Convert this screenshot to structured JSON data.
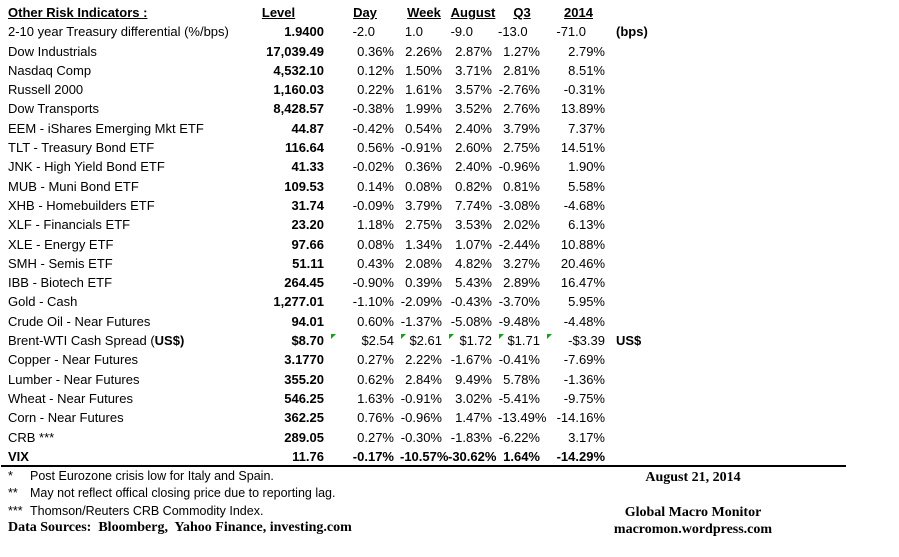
{
  "title": "Other Risk Indicators :",
  "columns": [
    "Level",
    "Day",
    "Week",
    "August",
    "Q3",
    "2014"
  ],
  "table": {
    "rows": [
      {
        "label": "2-10 year Treasury differential (%/bps)",
        "level": "1.9400",
        "day": "-2.0",
        "week": "1.0",
        "august": "-9.0",
        "q3": "-13.0",
        "y2014": "-71.0",
        "note": "(bps)",
        "inset": true
      },
      {
        "label": "Dow Industrials",
        "level": "17,039.49",
        "day": "0.36%",
        "week": "2.26%",
        "august": "2.87%",
        "q3": "1.27%",
        "y2014": "2.79%"
      },
      {
        "label": "Nasdaq Comp",
        "level": "4,532.10",
        "day": "0.12%",
        "week": "1.50%",
        "august": "3.71%",
        "q3": "2.81%",
        "y2014": "8.51%"
      },
      {
        "label": "Russell 2000",
        "level": "1,160.03",
        "day": "0.22%",
        "week": "1.61%",
        "august": "3.57%",
        "q3": "-2.76%",
        "y2014": "-0.31%"
      },
      {
        "label": "Dow Transports",
        "level": "8,428.57",
        "day": "-0.38%",
        "week": "1.99%",
        "august": "3.52%",
        "q3": "2.76%",
        "y2014": "13.89%"
      },
      {
        "label": "EEM - iShares Emerging Mkt ETF",
        "level": "44.87",
        "day": "-0.42%",
        "week": "0.54%",
        "august": "2.40%",
        "q3": "3.79%",
        "y2014": "7.37%"
      },
      {
        "label": "TLT - Treasury Bond ETF",
        "level": "116.64",
        "day": "0.56%",
        "week": "-0.91%",
        "august": "2.60%",
        "q3": "2.75%",
        "y2014": "14.51%"
      },
      {
        "label": "JNK - High Yield Bond ETF",
        "level": "41.33",
        "day": "-0.02%",
        "week": "0.36%",
        "august": "2.40%",
        "q3": "-0.96%",
        "y2014": "1.90%"
      },
      {
        "label": "MUB - Muni Bond ETF",
        "level": "109.53",
        "day": "0.14%",
        "week": "0.08%",
        "august": "0.82%",
        "q3": "0.81%",
        "y2014": "5.58%"
      },
      {
        "label": "XHB - Homebuilders ETF",
        "level": "31.74",
        "day": "-0.09%",
        "week": "3.79%",
        "august": "7.74%",
        "q3": "-3.08%",
        "y2014": "-4.68%"
      },
      {
        "label": "XLF - Financials ETF",
        "level": "23.20",
        "day": "1.18%",
        "week": "2.75%",
        "august": "3.53%",
        "q3": "2.02%",
        "y2014": "6.13%"
      },
      {
        "label": "XLE - Energy ETF",
        "level": "97.66",
        "day": "0.08%",
        "week": "1.34%",
        "august": "1.07%",
        "q3": "-2.44%",
        "y2014": "10.88%"
      },
      {
        "label": "SMH - Semis ETF",
        "level": "51.11",
        "day": "0.43%",
        "week": "2.08%",
        "august": "4.82%",
        "q3": "3.27%",
        "y2014": "20.46%"
      },
      {
        "label": "IBB - Biotech ETF",
        "level": "264.45",
        "day": "-0.90%",
        "week": "0.39%",
        "august": "5.43%",
        "q3": "2.89%",
        "y2014": "16.47%"
      },
      {
        "label": "Gold - Cash",
        "level": "1,277.01",
        "day": "-1.10%",
        "week": "-2.09%",
        "august": "-0.43%",
        "q3": "-3.70%",
        "y2014": "5.95%"
      },
      {
        "label": "Crude Oil - Near Futures",
        "level": "94.01",
        "day": "0.60%",
        "week": "-1.37%",
        "august": "-5.08%",
        "q3": "-9.48%",
        "y2014": "-4.48%"
      },
      {
        "label": "Brent-WTI Cash Spread (US$)",
        "label_prefix": "Brent-WTI Cash Spread (",
        "label_bold": "US$)",
        "level": "$8.70",
        "day": "$2.54",
        "week": "$2.61",
        "august": "$1.72",
        "q3": "$1.71",
        "y2014": "-$3.39",
        "note": "US$",
        "flagged": true
      },
      {
        "label": "Copper - Near Futures",
        "level": "3.1770",
        "day": "0.27%",
        "week": "2.22%",
        "august": "-1.67%",
        "q3": "-0.41%",
        "y2014": "-7.69%"
      },
      {
        "label": "Lumber - Near Futures",
        "level": "355.20",
        "day": "0.62%",
        "week": "2.84%",
        "august": "9.49%",
        "q3": "5.78%",
        "y2014": "-1.36%"
      },
      {
        "label": "Wheat - Near Futures",
        "level": "546.25",
        "day": "1.63%",
        "week": "-0.91%",
        "august": "3.02%",
        "q3": "-5.41%",
        "y2014": "-9.75%"
      },
      {
        "label": "Corn - Near Futures",
        "level": "362.25",
        "day": "0.76%",
        "week": "-0.96%",
        "august": "1.47%",
        "q3": "-13.49%",
        "y2014": "-14.16%"
      },
      {
        "label": "CRB ***",
        "level": "289.05",
        "day": "0.27%",
        "week": "-0.30%",
        "august": "-1.83%",
        "q3": "-6.22%",
        "y2014": "3.17%"
      },
      {
        "label": "VIX",
        "level": "11.76",
        "day": "-0.17%",
        "week": "-10.57%",
        "august": "-30.62%",
        "q3": "1.64%",
        "y2014": "-14.29%",
        "bold": true
      }
    ]
  },
  "footnotes": [
    {
      "marker": "*",
      "text": "Post Eurozone crisis low for Italy and Spain."
    },
    {
      "marker": "**",
      "text": "May not reflect offical closing price due to reporting lag."
    },
    {
      "marker": "***",
      "text": "Thomson/Reuters CRB Commodity Index."
    }
  ],
  "data_sources": "Data Sources:  Bloomberg,  Yahoo Finance, investing.com",
  "footer_right": {
    "date": "August 21, 2014",
    "brand": "Global Macro Monitor",
    "url": "macromon.wordpress.com"
  },
  "colors": {
    "flag_green": "#1f9a1f",
    "text": "#000000",
    "rule": "#000000"
  }
}
